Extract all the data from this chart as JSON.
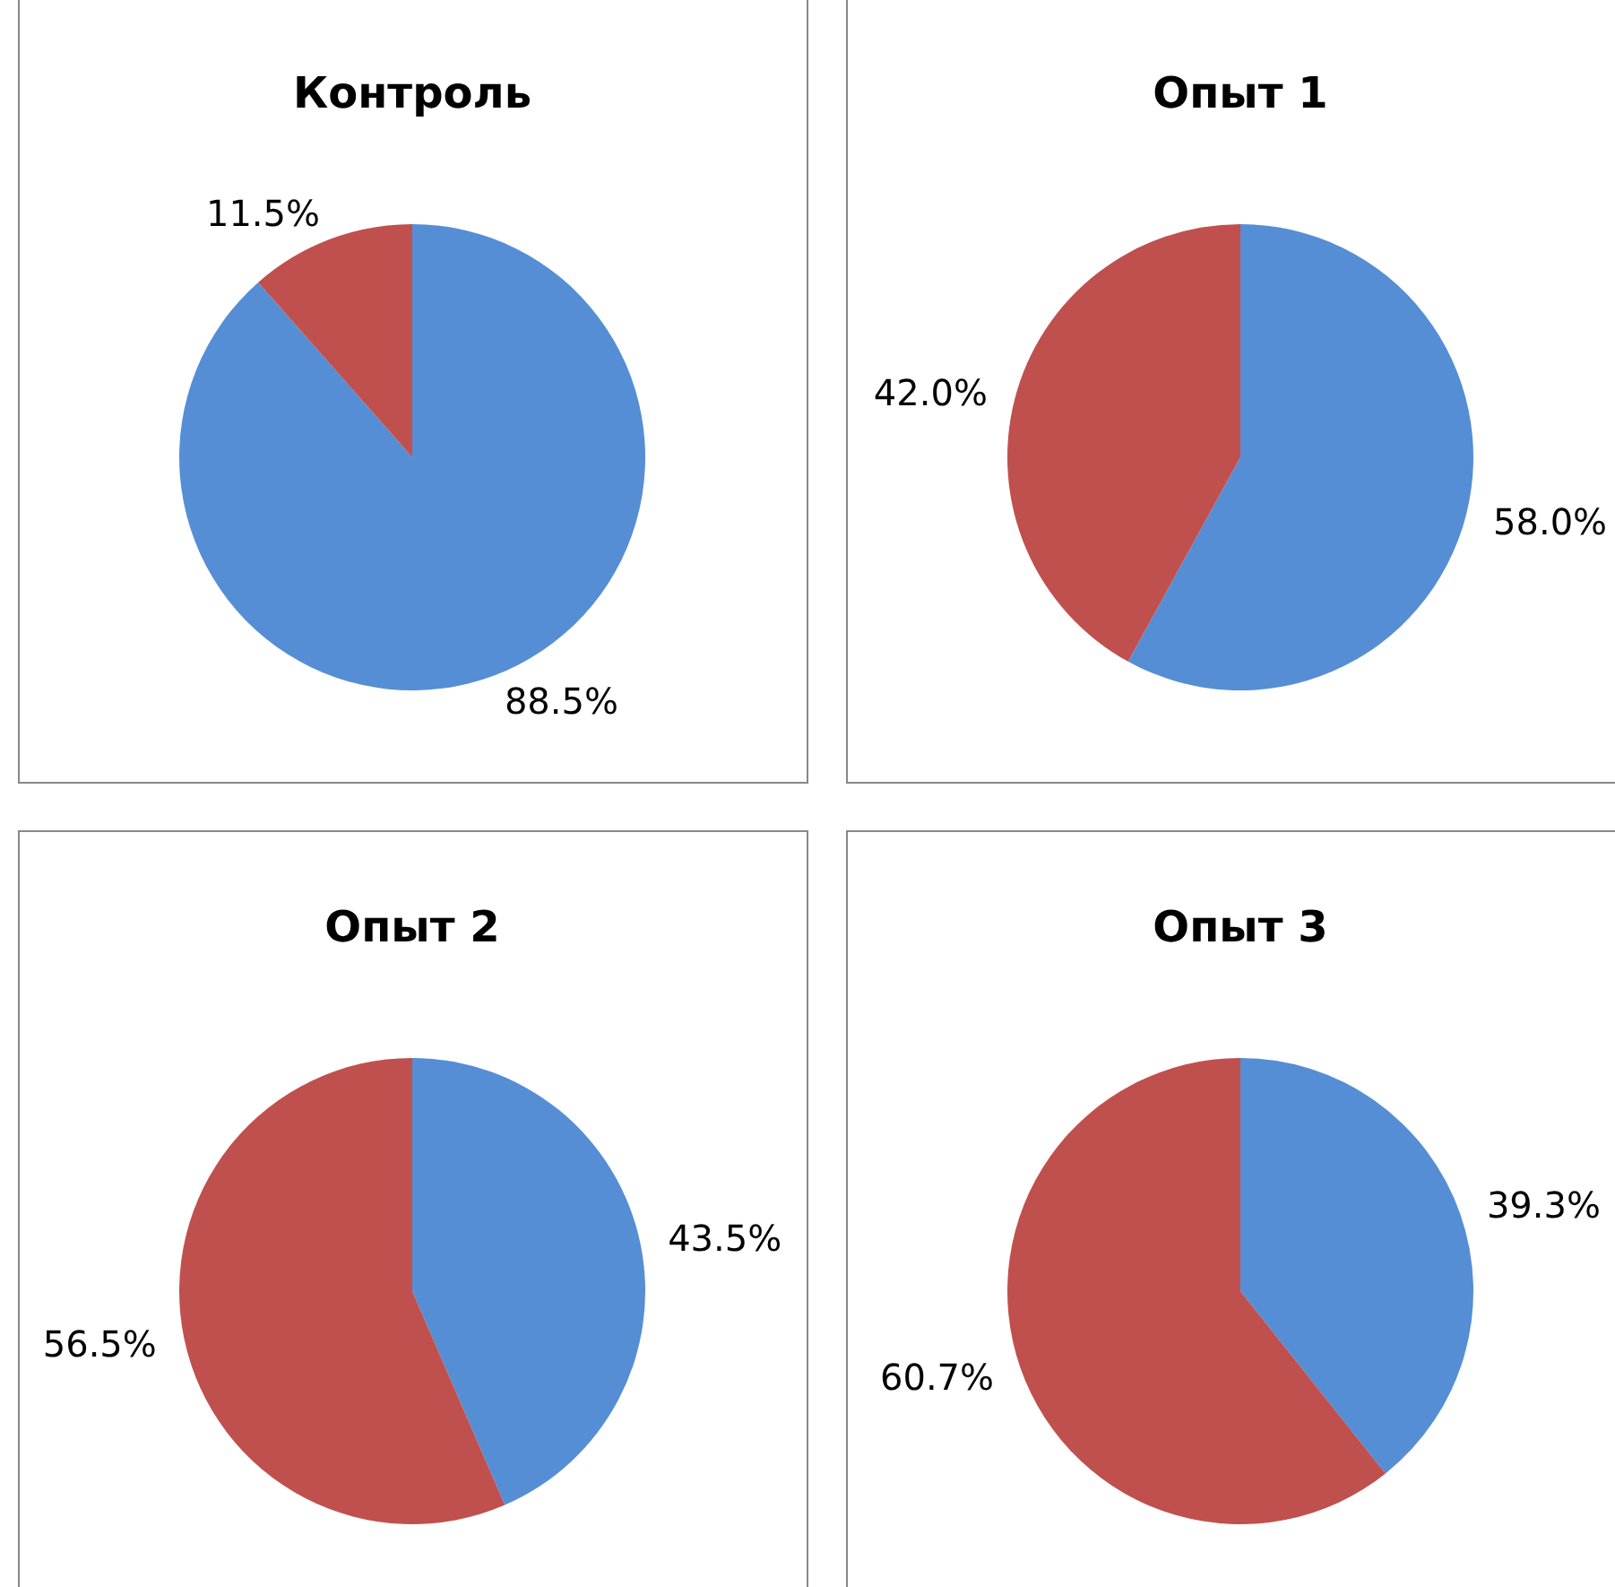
{
  "chart_data": [
    {
      "type": "pie",
      "title": "Контроль",
      "categories": [
        null,
        null
      ],
      "values": [
        88.5,
        11.5
      ],
      "colors": [
        "#558ed5",
        "#c0504d"
      ],
      "value_labels": [
        "88.5%",
        "11.5%"
      ]
    },
    {
      "type": "pie",
      "title": "Опыт 1",
      "categories": [
        null,
        null
      ],
      "values": [
        58.0,
        42.0
      ],
      "colors": [
        "#558ed5",
        "#c0504d"
      ],
      "value_labels": [
        "58.0%",
        "42.0%"
      ]
    },
    {
      "type": "pie",
      "title": "Опыт 2",
      "categories": [
        null,
        null
      ],
      "values": [
        43.5,
        56.5
      ],
      "colors": [
        "#558ed5",
        "#c0504d"
      ],
      "value_labels": [
        "43.5%",
        "56.5%"
      ]
    },
    {
      "type": "pie",
      "title": "Опыт 3",
      "categories": [
        null,
        null
      ],
      "values": [
        39.3,
        60.7
      ],
      "colors": [
        "#558ed5",
        "#c0504d"
      ],
      "value_labels": [
        "39.3%",
        "60.7%"
      ]
    }
  ]
}
